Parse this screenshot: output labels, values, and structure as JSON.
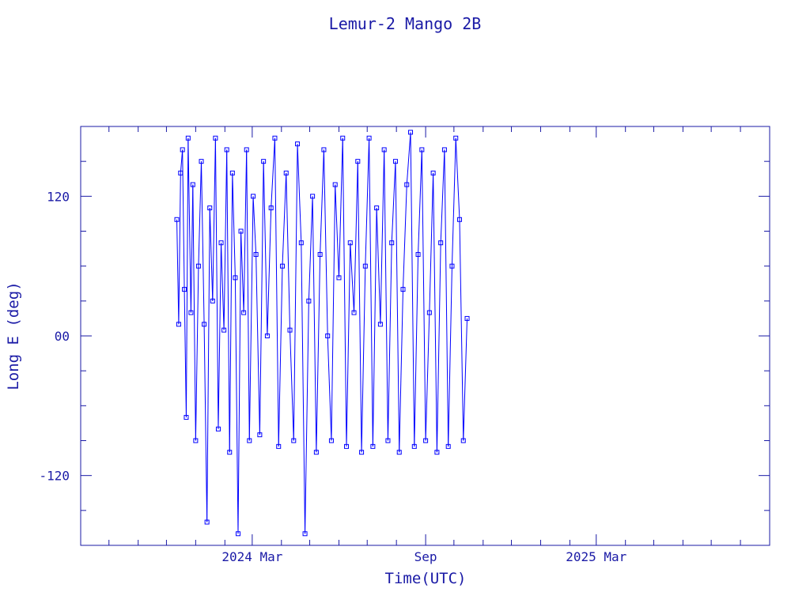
{
  "chart_data": {
    "type": "line",
    "title": "Lemur-2 Mango 2B",
    "xlabel": "Time(UTC)",
    "ylabel": "Long E (deg)",
    "x_tick_labels": [
      "2024 Mar",
      "Sep",
      "2025 Mar"
    ],
    "x_tick_dates": [
      "2024-03-01",
      "2024-09-01",
      "2025-03-01"
    ],
    "xlim": [
      "2023-09-01",
      "2025-09-01"
    ],
    "y_tick_labels": [
      "120",
      "00",
      "-120"
    ],
    "y_tick_values": [
      120,
      0,
      -120
    ],
    "ylim": [
      -180,
      180
    ],
    "grid": false,
    "legend": "none",
    "colors": {
      "line": "#0000ff",
      "axes": "#1a1aa6",
      "background": "#ffffff"
    },
    "series": [
      {
        "marker": "square",
        "x": [
          "2023-12-12",
          "2023-12-14",
          "2023-12-16",
          "2023-12-18",
          "2023-12-20",
          "2023-12-22",
          "2023-12-24",
          "2023-12-27",
          "2023-12-29",
          "2024-01-01",
          "2024-01-04",
          "2024-01-07",
          "2024-01-10",
          "2024-01-13",
          "2024-01-16",
          "2024-01-19",
          "2024-01-22",
          "2024-01-25",
          "2024-01-28",
          "2024-01-31",
          "2024-02-03",
          "2024-02-06",
          "2024-02-09",
          "2024-02-12",
          "2024-02-15",
          "2024-02-18",
          "2024-02-21",
          "2024-02-24",
          "2024-02-27",
          "2024-03-02",
          "2024-03-05",
          "2024-03-09",
          "2024-03-13",
          "2024-03-17",
          "2024-03-21",
          "2024-03-25",
          "2024-03-29",
          "2024-04-02",
          "2024-04-06",
          "2024-04-10",
          "2024-04-14",
          "2024-04-18",
          "2024-04-22",
          "2024-04-26",
          "2024-04-30",
          "2024-05-04",
          "2024-05-08",
          "2024-05-12",
          "2024-05-16",
          "2024-05-20",
          "2024-05-24",
          "2024-05-28",
          "2024-06-01",
          "2024-06-05",
          "2024-06-09",
          "2024-06-13",
          "2024-06-17",
          "2024-06-21",
          "2024-06-25",
          "2024-06-29",
          "2024-07-03",
          "2024-07-07",
          "2024-07-11",
          "2024-07-15",
          "2024-07-19",
          "2024-07-23",
          "2024-07-27",
          "2024-07-31",
          "2024-08-04",
          "2024-08-08",
          "2024-08-12",
          "2024-08-16",
          "2024-08-20",
          "2024-08-24",
          "2024-08-28",
          "2024-09-01",
          "2024-09-05",
          "2024-09-09",
          "2024-09-13",
          "2024-09-17",
          "2024-09-21",
          "2024-09-25",
          "2024-09-29",
          "2024-10-03",
          "2024-10-07",
          "2024-10-11",
          "2024-10-15"
        ],
        "y": [
          100,
          10,
          140,
          160,
          40,
          -70,
          170,
          20,
          130,
          -90,
          60,
          150,
          10,
          -160,
          110,
          30,
          170,
          -80,
          80,
          5,
          160,
          -100,
          140,
          50,
          -170,
          90,
          20,
          160,
          -90,
          120,
          70,
          -85,
          150,
          0,
          110,
          170,
          -95,
          60,
          140,
          5,
          -90,
          165,
          80,
          -170,
          30,
          120,
          -100,
          70,
          160,
          0,
          -90,
          130,
          50,
          170,
          -95,
          80,
          20,
          150,
          -100,
          60,
          170,
          -95,
          110,
          10,
          160,
          -90,
          80,
          150,
          -100,
          40,
          130,
          175,
          -95,
          70,
          160,
          -90,
          20,
          140,
          -100,
          80,
          160,
          -95,
          60,
          170,
          100,
          -90,
          15
        ]
      }
    ]
  }
}
